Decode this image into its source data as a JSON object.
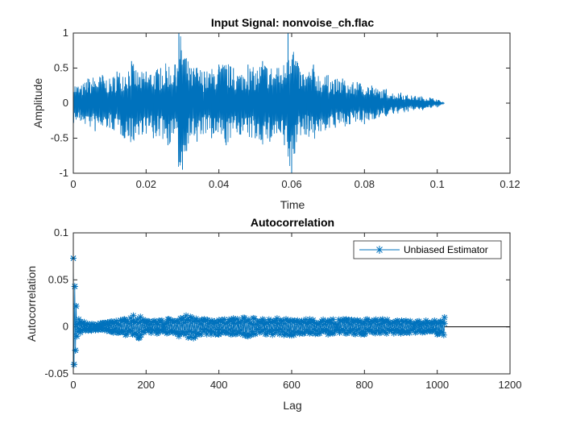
{
  "colors": {
    "series": "#0072bd",
    "axis": "#262626",
    "zero_line": "#000000",
    "background": "#ffffff"
  },
  "chart_data": [
    {
      "type": "line",
      "title": "Input Signal: nonvoise_ch.flac",
      "xlabel": "Time",
      "ylabel": "Amplitude",
      "xlim": [
        0,
        0.12
      ],
      "ylim": [
        -1,
        1
      ],
      "xticks": [
        0,
        0.02,
        0.04,
        0.06,
        0.08,
        0.1,
        0.12
      ],
      "xtick_labels": [
        "0",
        "0.02",
        "0.04",
        "0.06",
        "0.08",
        "0.1",
        "0.12"
      ],
      "yticks": [
        -1,
        -0.5,
        0,
        0.5,
        1
      ],
      "ytick_labels": [
        "-1",
        "-0.5",
        "0",
        "0.5",
        "1"
      ],
      "grid": false,
      "series": [
        {
          "x": [
            0,
            0.002,
            0.004,
            0.006,
            0.008,
            0.01,
            0.012,
            0.014,
            0.016,
            0.018,
            0.02,
            0.022,
            0.024,
            0.026,
            0.028,
            0.029,
            0.03,
            0.032,
            0.034,
            0.036,
            0.038,
            0.04,
            0.042,
            0.044,
            0.046,
            0.048,
            0.05,
            0.052,
            0.054,
            0.056,
            0.058,
            0.059,
            0.06,
            0.062,
            0.064,
            0.066,
            0.068,
            0.07,
            0.072,
            0.074,
            0.076,
            0.078,
            0.08,
            0.082,
            0.084,
            0.086,
            0.088,
            0.09,
            0.092,
            0.094,
            0.096,
            0.098,
            0.1,
            0.102
          ],
          "y": [
            0.3,
            -0.25,
            0.35,
            -0.4,
            0.4,
            -0.35,
            0.45,
            -0.5,
            0.6,
            -0.45,
            0.45,
            -0.5,
            0.5,
            -0.6,
            0.55,
            1.0,
            -0.95,
            0.5,
            -0.55,
            0.45,
            -0.5,
            0.55,
            -0.6,
            0.5,
            -0.45,
            0.55,
            -0.5,
            0.6,
            -0.55,
            0.5,
            -0.6,
            1.0,
            -1.0,
            0.5,
            -0.45,
            0.55,
            -0.4,
            0.4,
            -0.35,
            0.35,
            -0.3,
            0.3,
            -0.3,
            0.25,
            -0.2,
            0.2,
            -0.15,
            0.15,
            -0.12,
            0.1,
            -0.1,
            0.08,
            -0.06,
            0.0
          ]
        }
      ]
    },
    {
      "type": "line",
      "title": "Autocorrelation",
      "xlabel": "Lag",
      "ylabel": "Autocorrelation",
      "xlim": [
        0,
        1200
      ],
      "ylim": [
        -0.05,
        0.1
      ],
      "xticks": [
        0,
        200,
        400,
        600,
        800,
        1000,
        1200
      ],
      "xtick_labels": [
        "0",
        "200",
        "400",
        "600",
        "800",
        "1000",
        "1200"
      ],
      "yticks": [
        -0.05,
        0,
        0.05,
        0.1
      ],
      "ytick_labels": [
        "-0.05",
        "0",
        "0.05",
        "0.1"
      ],
      "grid": false,
      "legend": {
        "entries": [
          "Unbiased Estimator"
        ],
        "placement": "top-right"
      },
      "series": [
        {
          "name": "Unbiased Estimator",
          "marker": "asterisk",
          "x": [
            0,
            2,
            4,
            6,
            8,
            10,
            15,
            20,
            30,
            50,
            80,
            110,
            140,
            165,
            180,
            200,
            230,
            260,
            290,
            310,
            330,
            360,
            400,
            440,
            480,
            520,
            560,
            600,
            650,
            700,
            750,
            800,
            850,
            900,
            950,
            1000,
            1020
          ],
          "y": [
            0.073,
            -0.04,
            0.043,
            -0.025,
            0.022,
            -0.01,
            0.008,
            -0.006,
            0.005,
            -0.004,
            0.004,
            -0.006,
            0.008,
            0.012,
            -0.012,
            0.006,
            -0.007,
            0.008,
            -0.01,
            0.012,
            -0.012,
            0.008,
            -0.008,
            0.009,
            -0.01,
            0.008,
            0.009,
            -0.009,
            0.008,
            -0.008,
            0.008,
            -0.008,
            0.008,
            -0.007,
            0.006,
            -0.008,
            0.01
          ]
        }
      ],
      "extra_series": [
        {
          "kind": "zero-line",
          "x": [
            1020,
            1200
          ],
          "y": [
            0,
            0
          ]
        }
      ]
    }
  ]
}
